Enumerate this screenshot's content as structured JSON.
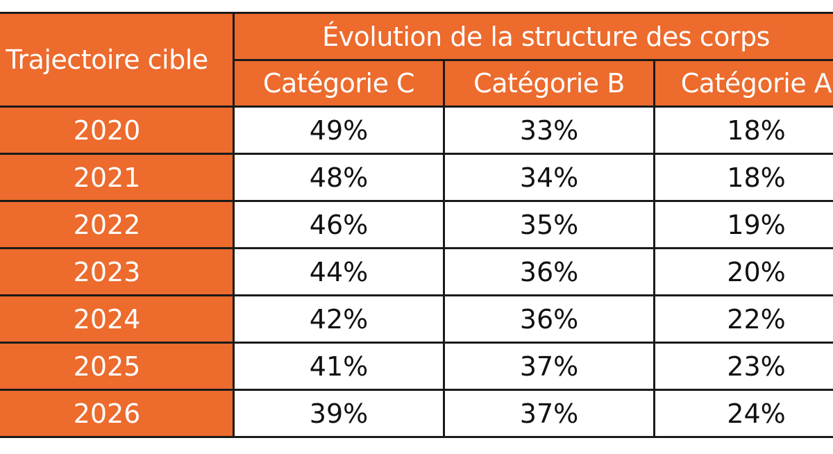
{
  "table": {
    "row_header_label": "Trajectoire cible",
    "group_header": "Évolution de la structure des corps",
    "columns": [
      "Catégorie C",
      "Catégorie B",
      "Catégorie A"
    ],
    "rows": [
      {
        "year": "2020",
        "values": [
          "49%",
          "33%",
          "18%"
        ]
      },
      {
        "year": "2021",
        "values": [
          "48%",
          "34%",
          "18%"
        ]
      },
      {
        "year": "2022",
        "values": [
          "46%",
          "35%",
          "19%"
        ]
      },
      {
        "year": "2023",
        "values": [
          "44%",
          "36%",
          "20%"
        ]
      },
      {
        "year": "2024",
        "values": [
          "42%",
          "36%",
          "22%"
        ]
      },
      {
        "year": "2025",
        "values": [
          "41%",
          "37%",
          "23%"
        ]
      },
      {
        "year": "2026",
        "values": [
          "39%",
          "37%",
          "24%"
        ]
      }
    ]
  },
  "colors": {
    "header_bg": "#ec6b2d",
    "header_text": "#ffffff",
    "border": "#1a1a1a"
  }
}
